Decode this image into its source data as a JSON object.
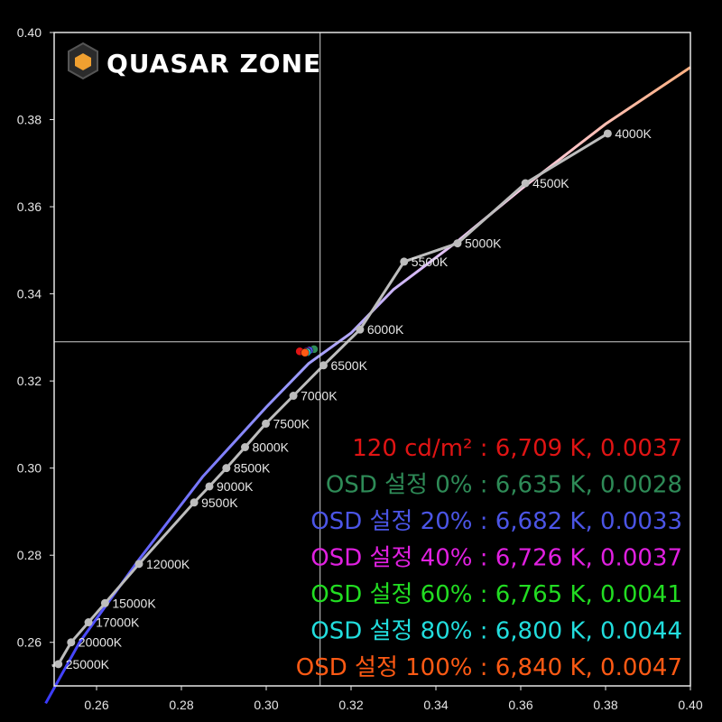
{
  "logo": {
    "text": "QUASAR ZONE",
    "accent_color": "#f0a030"
  },
  "chart_data": {
    "type": "scatter",
    "title": "",
    "xlabel": "",
    "ylabel": "",
    "xlim": [
      0.25,
      0.4
    ],
    "ylim": [
      0.25,
      0.4
    ],
    "x_ticks": [
      "0.26",
      "0.28",
      "0.30",
      "0.32",
      "0.34",
      "0.36",
      "0.38",
      "0.40"
    ],
    "y_ticks": [
      "0.26",
      "0.28",
      "0.30",
      "0.32",
      "0.34",
      "0.36",
      "0.38",
      "0.40"
    ],
    "grid": false,
    "reference_lines": {
      "x": 0.3127,
      "y": 0.329
    },
    "planckian_locus": [
      {
        "label": "4000K",
        "x": 0.3805,
        "y": 0.3768
      },
      {
        "label": "4500K",
        "x": 0.3611,
        "y": 0.3654
      },
      {
        "label": "5000K",
        "x": 0.3451,
        "y": 0.3516
      },
      {
        "label": "5500K",
        "x": 0.3325,
        "y": 0.3474
      },
      {
        "label": "6000K",
        "x": 0.3221,
        "y": 0.3318
      },
      {
        "label": "6500K",
        "x": 0.3135,
        "y": 0.3236
      },
      {
        "label": "7000K",
        "x": 0.3064,
        "y": 0.3166
      },
      {
        "label": "7500K",
        "x": 0.2999,
        "y": 0.3102
      },
      {
        "label": "8000K",
        "x": 0.295,
        "y": 0.3048
      },
      {
        "label": "8500K",
        "x": 0.2906,
        "y": 0.3
      },
      {
        "label": "9000K",
        "x": 0.2866,
        "y": 0.2958
      },
      {
        "label": "9500K",
        "x": 0.283,
        "y": 0.2921
      },
      {
        "label": "12000K",
        "x": 0.27,
        "y": 0.278
      },
      {
        "label": "15000K",
        "x": 0.262,
        "y": 0.269
      },
      {
        "label": "17000K",
        "x": 0.2581,
        "y": 0.2646
      },
      {
        "label": "20000K",
        "x": 0.254,
        "y": 0.26
      },
      {
        "label": "25000K",
        "x": 0.251,
        "y": 0.255
      }
    ],
    "daylight_locus": [
      [
        0.248,
        0.246
      ],
      [
        0.256,
        0.26
      ],
      [
        0.27,
        0.279
      ],
      [
        0.285,
        0.298
      ],
      [
        0.3,
        0.314
      ],
      [
        0.31,
        0.324
      ],
      [
        0.32,
        0.331
      ],
      [
        0.33,
        0.341
      ],
      [
        0.345,
        0.352
      ],
      [
        0.36,
        0.364
      ],
      [
        0.38,
        0.379
      ],
      [
        0.4,
        0.392
      ]
    ],
    "series": [
      {
        "name": "120 cd/m²",
        "cct": "6,709 K",
        "duv": "0.0037",
        "color": "#e01414",
        "x": 0.3079,
        "y": 0.3268
      },
      {
        "name": "OSD 설정 0%",
        "cct": "6,635 K",
        "duv": "0.0028",
        "color": "#2e8b57",
        "x": 0.311,
        "y": 0.3273
      },
      {
        "name": "OSD 설정 20%",
        "cct": "6,682 K",
        "duv": "0.0033",
        "color": "#4b55e6",
        "x": 0.3096,
        "y": 0.327
      },
      {
        "name": "OSD 설정 40%",
        "cct": "6,726 K",
        "duv": "0.0037",
        "color": "#e020e0",
        "x": 0.3088,
        "y": 0.3268
      },
      {
        "name": "OSD 설정 60%",
        "cct": "6,765 K",
        "duv": "0.0041",
        "color": "#22dd22",
        "x": 0.3085,
        "y": 0.3266
      },
      {
        "name": "OSD 설정 80%",
        "cct": "6,800 K",
        "duv": "0.0044",
        "color": "#22dddd",
        "x": 0.3083,
        "y": 0.3266
      },
      {
        "name": "OSD 설정 100%",
        "cct": "6,840 K",
        "duv": "0.0047",
        "color": "#ff5a14",
        "x": 0.3076,
        "y": 0.3265
      }
    ]
  }
}
